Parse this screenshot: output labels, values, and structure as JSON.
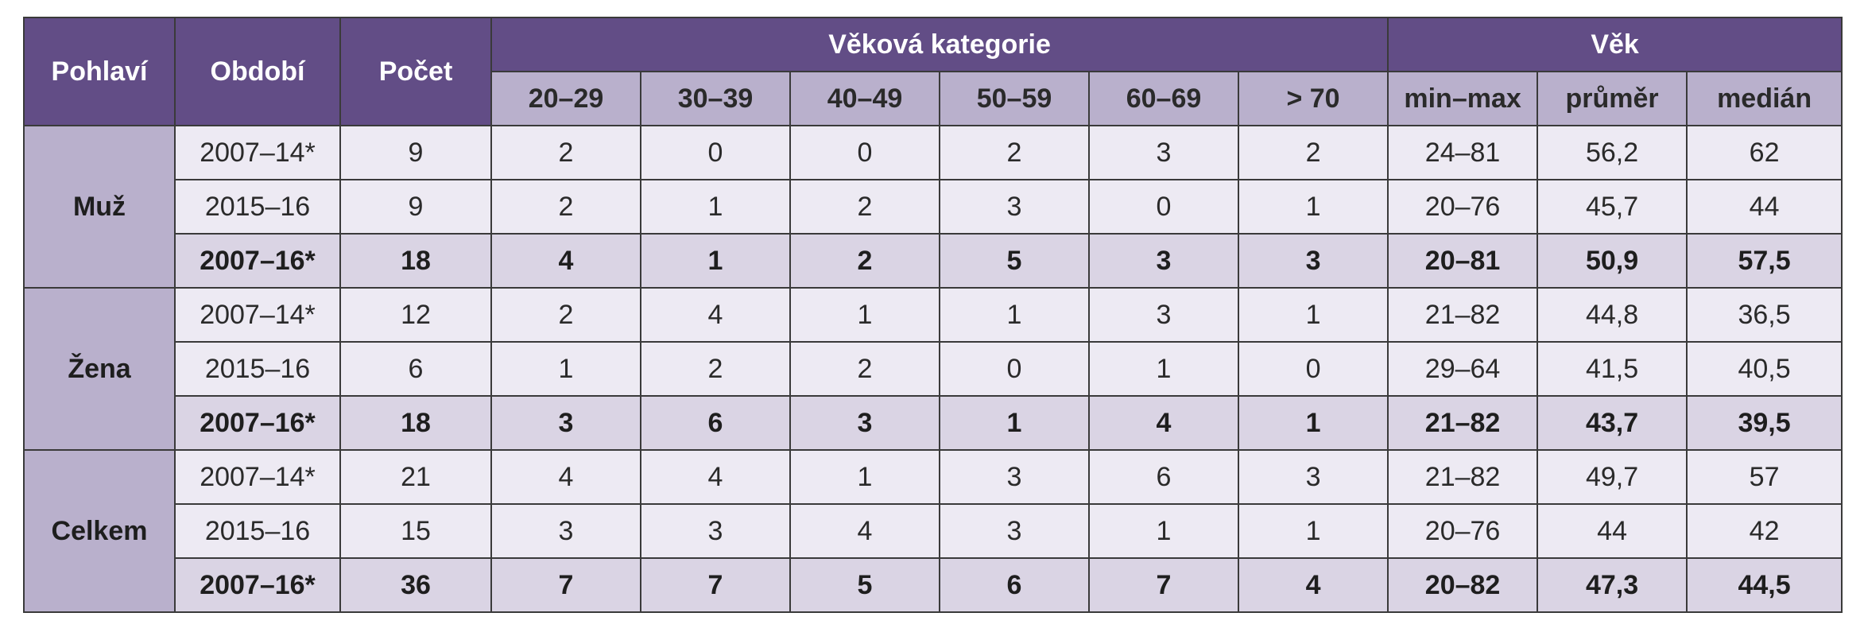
{
  "header": {
    "pohlavi": "Pohlaví",
    "obdobi": "Období",
    "pocet": "Počet",
    "vekova_kategorie": "Věková kategorie",
    "vek": "Věk",
    "age_columns": [
      "20–29",
      "30–39",
      "40–49",
      "50–59",
      "60–69",
      "> 70"
    ],
    "vek_columns": [
      "min–max",
      "průměr",
      "medián"
    ]
  },
  "groups": [
    {
      "label": "Muž",
      "rows": [
        {
          "obdobi": "2007–14*",
          "pocet": "9",
          "ages": [
            "2",
            "0",
            "0",
            "2",
            "3",
            "2"
          ],
          "minmax": "24–81",
          "prumer": "56,2",
          "median": "62"
        },
        {
          "obdobi": "2015–16",
          "pocet": "9",
          "ages": [
            "2",
            "1",
            "2",
            "3",
            "0",
            "1"
          ],
          "minmax": "20–76",
          "prumer": "45,7",
          "median": "44"
        },
        {
          "obdobi": "2007–16*",
          "pocet": "18",
          "ages": [
            "4",
            "1",
            "2",
            "5",
            "3",
            "3"
          ],
          "minmax": "20–81",
          "prumer": "50,9",
          "median": "57,5"
        }
      ]
    },
    {
      "label": "Žena",
      "rows": [
        {
          "obdobi": "2007–14*",
          "pocet": "12",
          "ages": [
            "2",
            "4",
            "1",
            "1",
            "3",
            "1"
          ],
          "minmax": "21–82",
          "prumer": "44,8",
          "median": "36,5"
        },
        {
          "obdobi": "2015–16",
          "pocet": "6",
          "ages": [
            "1",
            "2",
            "2",
            "0",
            "1",
            "0"
          ],
          "minmax": "29–64",
          "prumer": "41,5",
          "median": "40,5"
        },
        {
          "obdobi": "2007–16*",
          "pocet": "18",
          "ages": [
            "3",
            "6",
            "3",
            "1",
            "4",
            "1"
          ],
          "minmax": "21–82",
          "prumer": "43,7",
          "median": "39,5"
        }
      ]
    },
    {
      "label": "Celkem",
      "rows": [
        {
          "obdobi": "2007–14*",
          "pocet": "21",
          "ages": [
            "4",
            "4",
            "1",
            "3",
            "6",
            "3"
          ],
          "minmax": "21–82",
          "prumer": "49,7",
          "median": "57"
        },
        {
          "obdobi": "2015–16",
          "pocet": "15",
          "ages": [
            "3",
            "3",
            "4",
            "3",
            "1",
            "1"
          ],
          "minmax": "20–76",
          "prumer": "44",
          "median": "42"
        },
        {
          "obdobi": "2007–16*",
          "pocet": "36",
          "ages": [
            "7",
            "7",
            "5",
            "6",
            "7",
            "4"
          ],
          "minmax": "20–82",
          "prumer": "47,3",
          "median": "44,5"
        }
      ]
    }
  ]
}
